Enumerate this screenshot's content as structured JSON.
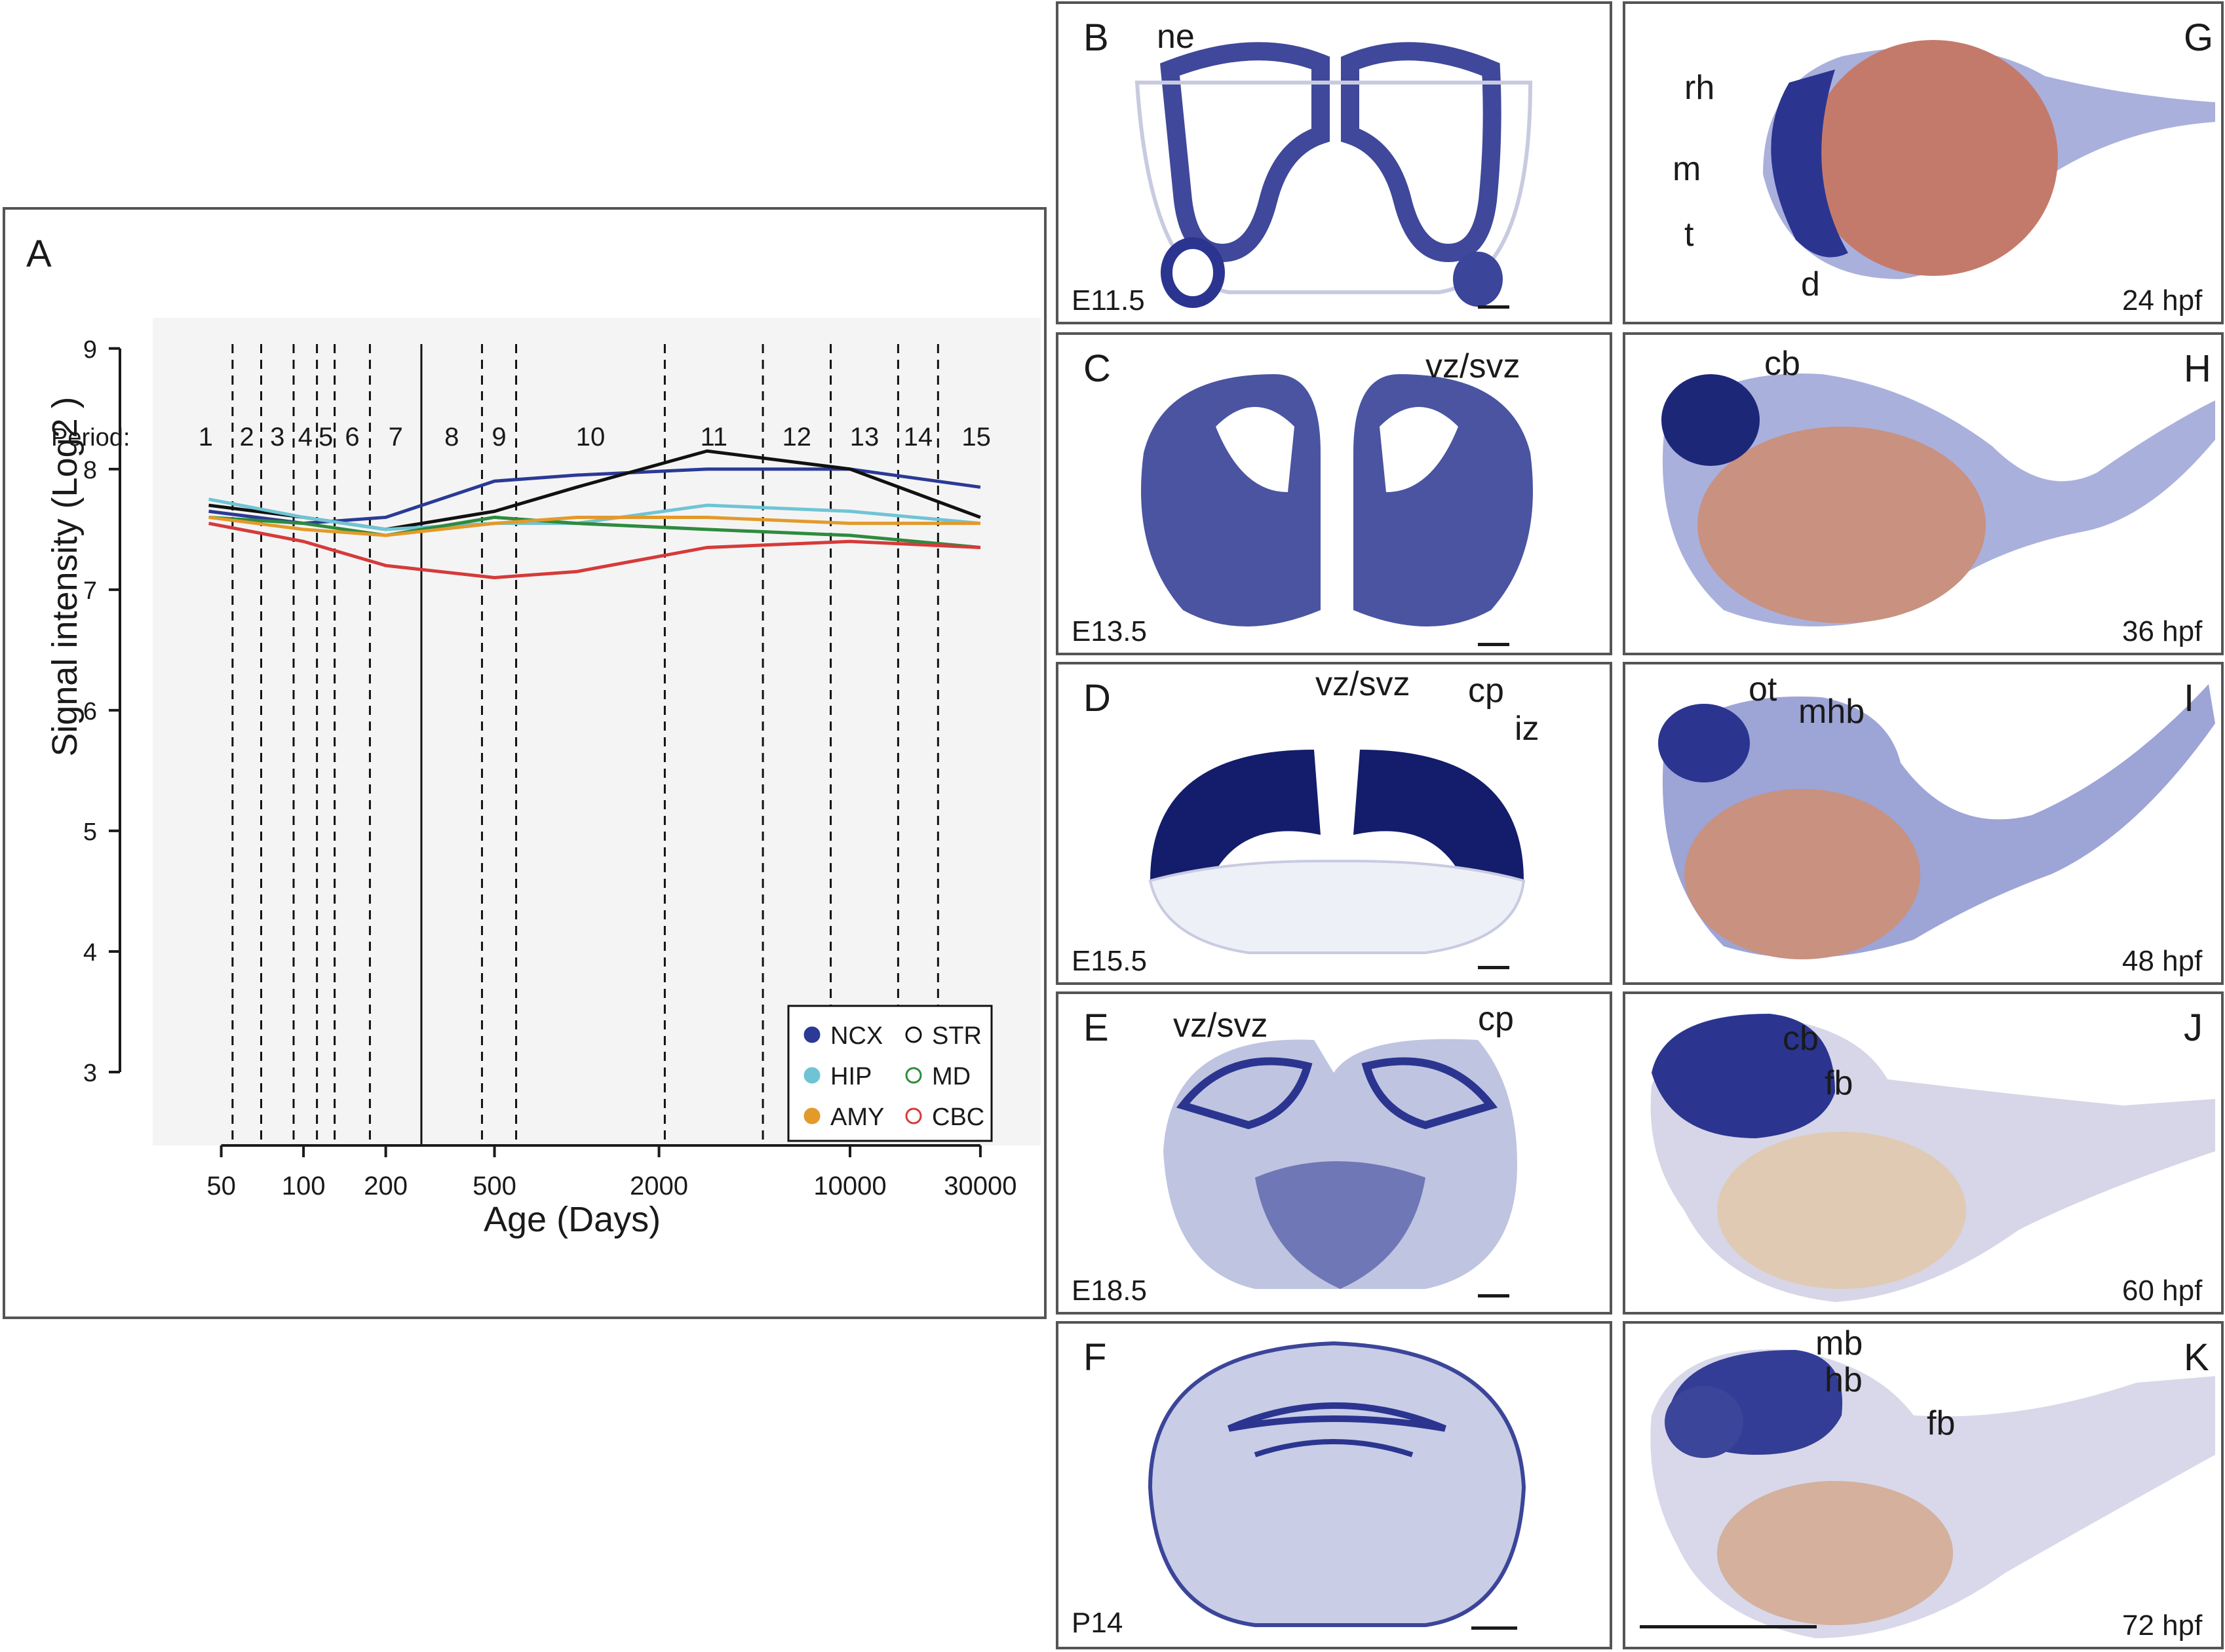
{
  "chart_data": {
    "type": "scatter",
    "panel_label": "A",
    "period_prefix": "Period:",
    "periods": [
      "1",
      "2",
      "3",
      "4",
      "5",
      "6",
      "7",
      "8",
      "9",
      "10",
      "11",
      "12",
      "13",
      "14",
      "15"
    ],
    "ylabel": "Signal intensity (Log2 )",
    "xlabel": "Age (Days)",
    "x_scale": "log",
    "xlim": [
      35,
      40000
    ],
    "ylim": [
      2.5,
      9.2
    ],
    "yticks": [
      3,
      4,
      5,
      6,
      7,
      8,
      9
    ],
    "xticks": [
      50,
      100,
      200,
      500,
      2000,
      10000,
      30000
    ],
    "period_boundaries": [
      55,
      70,
      92,
      112,
      130,
      175,
      270,
      450,
      600,
      2100,
      4800,
      8500,
      15000,
      21000
    ],
    "birth_line": 270,
    "legend": [
      {
        "name": "NCX",
        "marker": "filled",
        "color": "#2b3a96"
      },
      {
        "name": "STR",
        "marker": "open",
        "color": "#111111"
      },
      {
        "name": "HIP",
        "marker": "filled",
        "color": "#6fc4d4"
      },
      {
        "name": "MD",
        "marker": "open",
        "color": "#2e8b3e"
      },
      {
        "name": "AMY",
        "marker": "filled",
        "color": "#e39a2a"
      },
      {
        "name": "CBC",
        "marker": "open",
        "color": "#d63a3a"
      }
    ],
    "series": [
      {
        "name": "NCX",
        "color": "#2b3a96",
        "curve_x": [
          45,
          100,
          200,
          500,
          1000,
          3000,
          10000,
          30000
        ],
        "curve_y": [
          7.65,
          7.55,
          7.6,
          7.9,
          7.95,
          8.0,
          8.0,
          7.85
        ]
      },
      {
        "name": "STR",
        "color": "#111111",
        "curve_x": [
          45,
          100,
          200,
          500,
          1000,
          3000,
          10000,
          30000
        ],
        "curve_y": [
          7.7,
          7.6,
          7.5,
          7.65,
          7.85,
          8.15,
          8.0,
          7.6
        ]
      },
      {
        "name": "HIP",
        "color": "#6fc4d4",
        "curve_x": [
          45,
          100,
          200,
          500,
          1000,
          3000,
          10000,
          30000
        ],
        "curve_y": [
          7.75,
          7.6,
          7.5,
          7.55,
          7.55,
          7.7,
          7.65,
          7.55
        ]
      },
      {
        "name": "MD",
        "color": "#2e8b3e",
        "curve_x": [
          45,
          100,
          200,
          500,
          1000,
          3000,
          10000,
          30000
        ],
        "curve_y": [
          7.6,
          7.55,
          7.45,
          7.6,
          7.55,
          7.5,
          7.45,
          7.35
        ]
      },
      {
        "name": "AMY",
        "color": "#e39a2a",
        "curve_x": [
          45,
          100,
          200,
          500,
          1000,
          3000,
          10000,
          30000
        ],
        "curve_y": [
          7.6,
          7.5,
          7.45,
          7.55,
          7.6,
          7.6,
          7.55,
          7.55
        ]
      },
      {
        "name": "CBC",
        "color": "#d63a3a",
        "curve_x": [
          45,
          100,
          200,
          500,
          1000,
          3000,
          10000,
          30000
        ],
        "curve_y": [
          7.55,
          7.4,
          7.2,
          7.1,
          7.15,
          7.35,
          7.4,
          7.35
        ]
      }
    ]
  },
  "mouse_panels": [
    {
      "letter": "B",
      "stage": "E11.5",
      "labels": [
        "ne"
      ]
    },
    {
      "letter": "C",
      "stage": "E13.5",
      "labels": [
        "vz/svz"
      ]
    },
    {
      "letter": "D",
      "stage": "E15.5",
      "labels": [
        "vz/svz",
        "cp",
        "iz"
      ]
    },
    {
      "letter": "E",
      "stage": "E18.5",
      "labels": [
        "vz/svz",
        "cp"
      ]
    },
    {
      "letter": "F",
      "stage": "P14",
      "labels": []
    }
  ],
  "fish_panels": [
    {
      "letter": "G",
      "stage": "24 hpf",
      "labels": [
        "rh",
        "m",
        "t",
        "d"
      ]
    },
    {
      "letter": "H",
      "stage": "36 hpf",
      "labels": [
        "cb"
      ]
    },
    {
      "letter": "I",
      "stage": "48 hpf",
      "labels": [
        "ot",
        "mhb"
      ]
    },
    {
      "letter": "J",
      "stage": "60 hpf",
      "labels": [
        "cb",
        "fb"
      ]
    },
    {
      "letter": "K",
      "stage": "72 hpf",
      "labels": [
        "mb",
        "hb",
        "fb"
      ]
    }
  ],
  "colors": {
    "stain": "#2b3590",
    "yolk": "#c47a6a",
    "frame": "#555555"
  }
}
